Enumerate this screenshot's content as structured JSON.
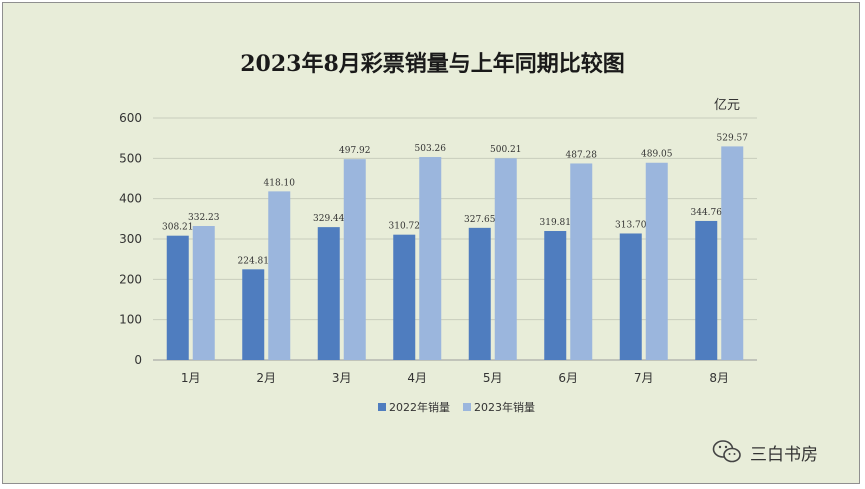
{
  "chart_data": {
    "type": "bar",
    "title": "2023年8月彩票销量与上年同期比较图",
    "unit_label": "亿元",
    "categories": [
      "1月",
      "2月",
      "3月",
      "4月",
      "5月",
      "6月",
      "7月",
      "8月"
    ],
    "series": [
      {
        "name": "2022年销量",
        "values": [
          308.21,
          224.81,
          329.44,
          310.72,
          327.65,
          319.81,
          313.7,
          344.76
        ],
        "labels": [
          "308.21",
          "224.81",
          "329.44",
          "310.72",
          "327.65",
          "319.81",
          "313.70",
          "344.76"
        ],
        "color": "#4f7dbf"
      },
      {
        "name": "2023年销量",
        "values": [
          332.23,
          418.1,
          497.92,
          503.26,
          500.21,
          487.28,
          489.05,
          529.57
        ],
        "labels": [
          "332.23",
          "418.10",
          "497.92",
          "503.26",
          "500.21",
          "487.28",
          "489.05",
          "529.57"
        ],
        "color": "#9bb6dd"
      }
    ],
    "ylim": [
      0,
      600
    ],
    "yticks": [
      "0",
      "100",
      "200",
      "300",
      "400",
      "500",
      "600"
    ],
    "grid": true,
    "legend_position": "bottom"
  },
  "watermark": {
    "text": "三白书房",
    "icon": "wechat-icon"
  }
}
